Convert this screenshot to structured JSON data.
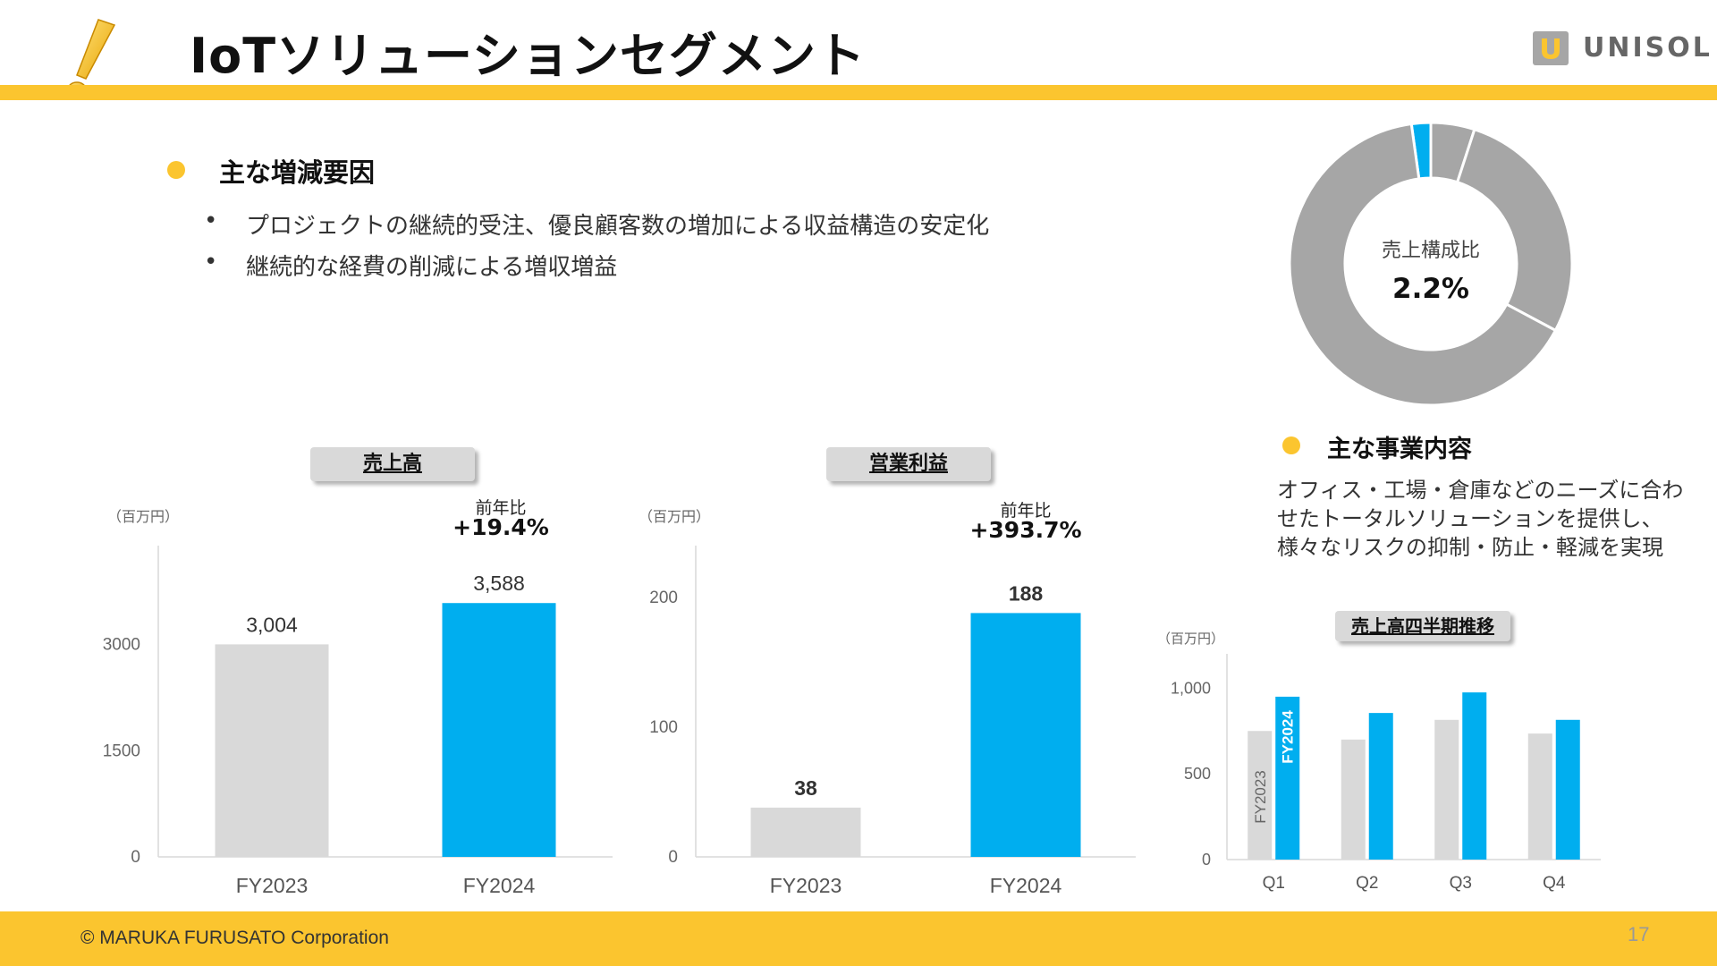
{
  "header": {
    "title": "IoTソリューションセグメント",
    "logo_text": "UNISOL"
  },
  "factors": {
    "heading": "主な増減要因",
    "items": [
      "プロジェクトの継続的受注、優良顧客数の増加による収益構造の安定化",
      "継続的な経費の削減による増収増益"
    ]
  },
  "business": {
    "heading": "主な事業内容",
    "description": "オフィス・工場・倉庫などのニーズに合わせたトータルソリューションを提供し、様々なリスクの抑制・防止・軽減を実現"
  },
  "donut": {
    "center_label": "売上構成比",
    "center_value": "2.2%"
  },
  "footer": {
    "copyright": "© MARUKA FURUSATO Corporation",
    "page_number": "17"
  },
  "colors": {
    "accent_yellow": "#fbc52f",
    "fy2024_blue": "#00aeef",
    "fy2023_gray": "#d9d9d9",
    "donut_gray": "#a6a6a6"
  },
  "chart_data": [
    {
      "type": "bar",
      "title": "売上高",
      "unit_label": "（百万円）",
      "categories": [
        "FY2023",
        "FY2024"
      ],
      "values": [
        3004,
        3588
      ],
      "value_labels": [
        "3,004",
        "3,588"
      ],
      "ylim": [
        0,
        4400
      ],
      "yticks": [
        0,
        1500,
        3000
      ],
      "ytick_labels": [
        "0",
        "1500",
        "3000"
      ],
      "yoy_label": "前年比",
      "yoy_value": "+19.4%"
    },
    {
      "type": "bar",
      "title": "営業利益",
      "unit_label": "（百万円）",
      "categories": [
        "FY2023",
        "FY2024"
      ],
      "values": [
        38,
        188
      ],
      "value_labels": [
        "38",
        "188"
      ],
      "ylim": [
        0,
        240
      ],
      "yticks": [
        0,
        100,
        200
      ],
      "ytick_labels": [
        "0",
        "100",
        "200"
      ],
      "yoy_label": "前年比",
      "yoy_value": "+393.7%"
    },
    {
      "type": "bar",
      "title": "売上高四半期推移",
      "unit_label": "（百万円）",
      "categories": [
        "Q1",
        "Q2",
        "Q3",
        "Q4"
      ],
      "series": [
        {
          "name": "FY2023",
          "values": [
            750,
            700,
            815,
            735
          ]
        },
        {
          "name": "FY2024",
          "values": [
            950,
            855,
            975,
            815
          ]
        }
      ],
      "ylim": [
        0,
        1200
      ],
      "yticks": [
        0,
        500,
        1000
      ],
      "ytick_labels": [
        "0",
        "500",
        "1,000"
      ]
    },
    {
      "type": "pie",
      "title": "",
      "slices": [
        {
          "value": 2.2,
          "highlight": true
        },
        {
          "value": 5.0,
          "highlight": false
        },
        {
          "value": 27.8,
          "highlight": false
        },
        {
          "value": 65.0,
          "highlight": false
        }
      ]
    }
  ]
}
